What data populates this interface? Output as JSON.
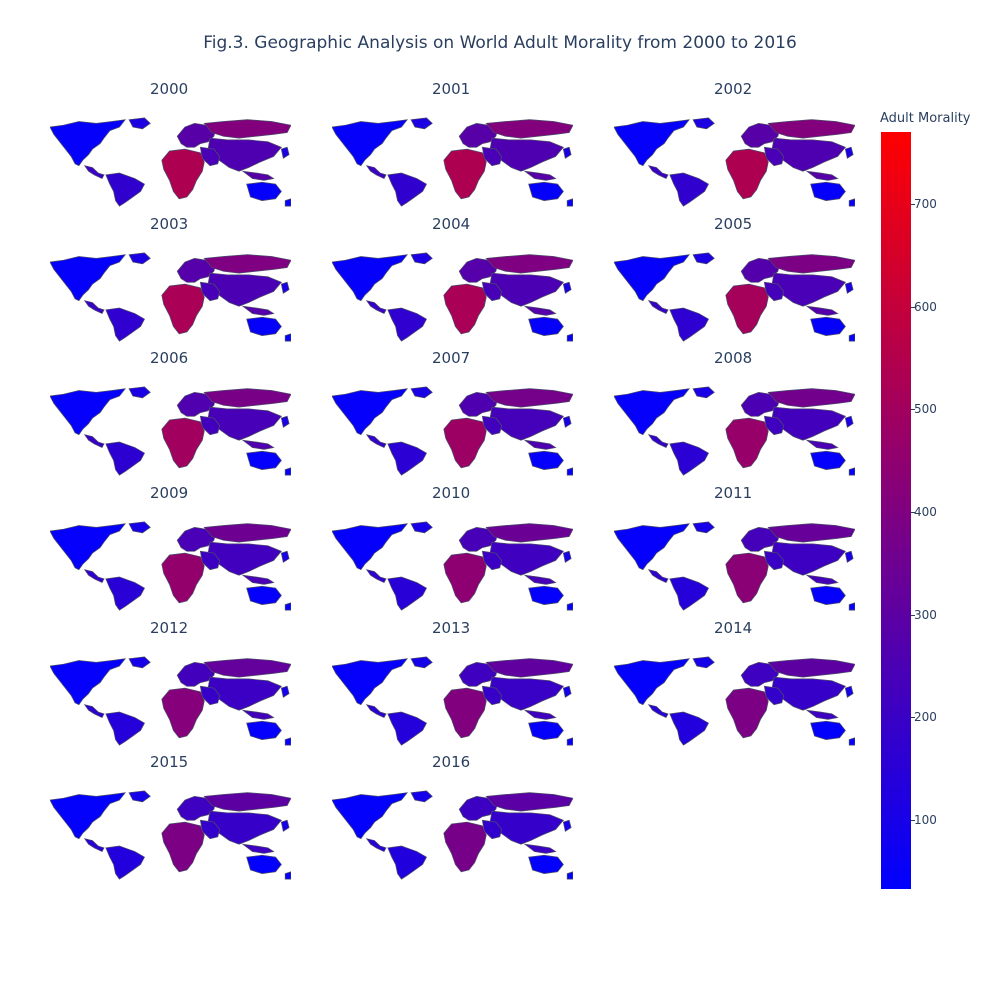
{
  "title": "Fig.3. Geographic Analysis on World Adult Morality from 2000 to 2016",
  "colorbar": {
    "title": "Adult Morality",
    "ticks": [
      "700",
      "600",
      "500",
      "400",
      "300",
      "200",
      "100"
    ],
    "min_value": 33,
    "max_value": 770,
    "tick_values": [
      700,
      600,
      500,
      400,
      300,
      200,
      100
    ],
    "color_low": "#0000ff",
    "color_high": "#ff0000"
  },
  "panels": [
    {
      "year": "2000",
      "mix": 0.38
    },
    {
      "year": "2001",
      "mix": 0.38
    },
    {
      "year": "2002",
      "mix": 0.38
    },
    {
      "year": "2003",
      "mix": 0.37
    },
    {
      "year": "2004",
      "mix": 0.37
    },
    {
      "year": "2005",
      "mix": 0.36
    },
    {
      "year": "2006",
      "mix": 0.35
    },
    {
      "year": "2007",
      "mix": 0.34
    },
    {
      "year": "2008",
      "mix": 0.33
    },
    {
      "year": "2009",
      "mix": 0.32
    },
    {
      "year": "2010",
      "mix": 0.31
    },
    {
      "year": "2011",
      "mix": 0.3
    },
    {
      "year": "2012",
      "mix": 0.29
    },
    {
      "year": "2013",
      "mix": 0.28
    },
    {
      "year": "2014",
      "mix": 0.27
    },
    {
      "year": "2015",
      "mix": 0.27
    },
    {
      "year": "2016",
      "mix": 0.26
    }
  ]
}
